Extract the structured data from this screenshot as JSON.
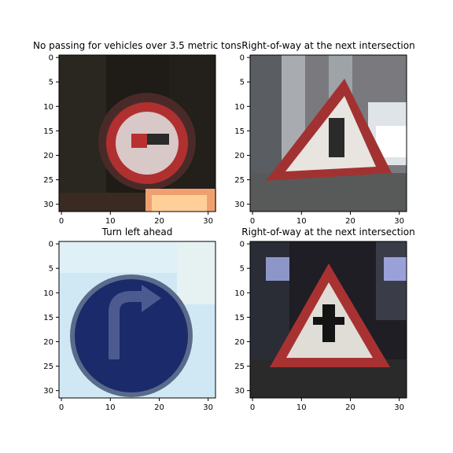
{
  "panels": [
    {
      "title": "No passing for vehicles over 3.5 metric tons",
      "scene": "no-passing"
    },
    {
      "title": "Right-of-way at the next intersection",
      "scene": "right-of-way-1"
    },
    {
      "title": "Turn left ahead",
      "scene": "turn-left"
    },
    {
      "title": "Right-of-way at the next intersection",
      "scene": "right-of-way-2"
    }
  ],
  "axes": {
    "y_ticks": [
      0,
      5,
      10,
      15,
      20,
      25,
      30
    ],
    "x_ticks": [
      0,
      10,
      20,
      30
    ],
    "range": [
      -0.5,
      31.5
    ]
  },
  "colors": {
    "sign_red": "#b02a2a",
    "sign_blue": "#1a2a6a",
    "sky_blue": "#cfe8f4"
  }
}
